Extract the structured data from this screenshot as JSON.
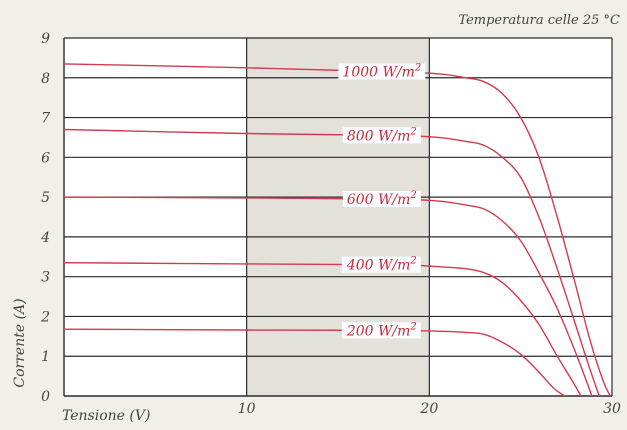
{
  "chart_data": {
    "type": "line",
    "title": "",
    "annotation": "Temperatura celle 25 °C",
    "xlabel": "Tensione (V)",
    "ylabel": "Corrente (A)",
    "xlim": [
      0,
      30
    ],
    "ylim": [
      0,
      9
    ],
    "x_ticks": [
      0,
      10,
      20,
      30
    ],
    "y_ticks": [
      0,
      1,
      2,
      3,
      4,
      5,
      6,
      7,
      8,
      9
    ],
    "grid": true,
    "curve_color": "#d23a4f",
    "series": [
      {
        "label": "1000 W/m²",
        "label_base": "1000 W/m",
        "label_sup": "2",
        "label_x": 17.4,
        "x": [
          0,
          10,
          18,
          20.5,
          22,
          23,
          24,
          25,
          26,
          27,
          28,
          28.8,
          29.5,
          29.9
        ],
        "y": [
          8.35,
          8.25,
          8.15,
          8.1,
          8.0,
          7.9,
          7.6,
          7.0,
          6.0,
          4.5,
          2.8,
          1.4,
          0.4,
          0
        ]
      },
      {
        "label": "800 W/m²",
        "label_base": "800 W/m",
        "label_sup": "2",
        "label_x": 17.4,
        "x": [
          0,
          10,
          18,
          20.5,
          22,
          23,
          24,
          25,
          26,
          27,
          28,
          28.7,
          29.3
        ],
        "y": [
          6.7,
          6.6,
          6.55,
          6.5,
          6.4,
          6.3,
          6.0,
          5.5,
          4.5,
          3.2,
          1.8,
          0.8,
          0
        ]
      },
      {
        "label": "600 W/m²",
        "label_base": "600 W/m",
        "label_sup": "2",
        "label_x": 17.4,
        "x": [
          0,
          10,
          18,
          20.5,
          22,
          23,
          24,
          25,
          26,
          27,
          28,
          28.9
        ],
        "y": [
          5.0,
          4.98,
          4.95,
          4.9,
          4.8,
          4.7,
          4.4,
          3.9,
          3.1,
          2.2,
          1.1,
          0
        ]
      },
      {
        "label": "400 W/m²",
        "label_base": "400 W/m",
        "label_sup": "2",
        "label_x": 17.4,
        "x": [
          0,
          10,
          18,
          20.5,
          22,
          23,
          24,
          25,
          26,
          27,
          27.8,
          28.3
        ],
        "y": [
          3.35,
          3.32,
          3.3,
          3.25,
          3.2,
          3.1,
          2.85,
          2.4,
          1.8,
          1.0,
          0.4,
          0
        ]
      },
      {
        "label": "200 W/m²",
        "label_base": "200 W/m",
        "label_sup": "2",
        "label_x": 17.4,
        "x": [
          0,
          10,
          18,
          20.5,
          22,
          23,
          24,
          25,
          26,
          26.8,
          27.4
        ],
        "y": [
          1.68,
          1.66,
          1.65,
          1.63,
          1.6,
          1.55,
          1.35,
          1.05,
          0.6,
          0.2,
          0
        ]
      }
    ]
  }
}
